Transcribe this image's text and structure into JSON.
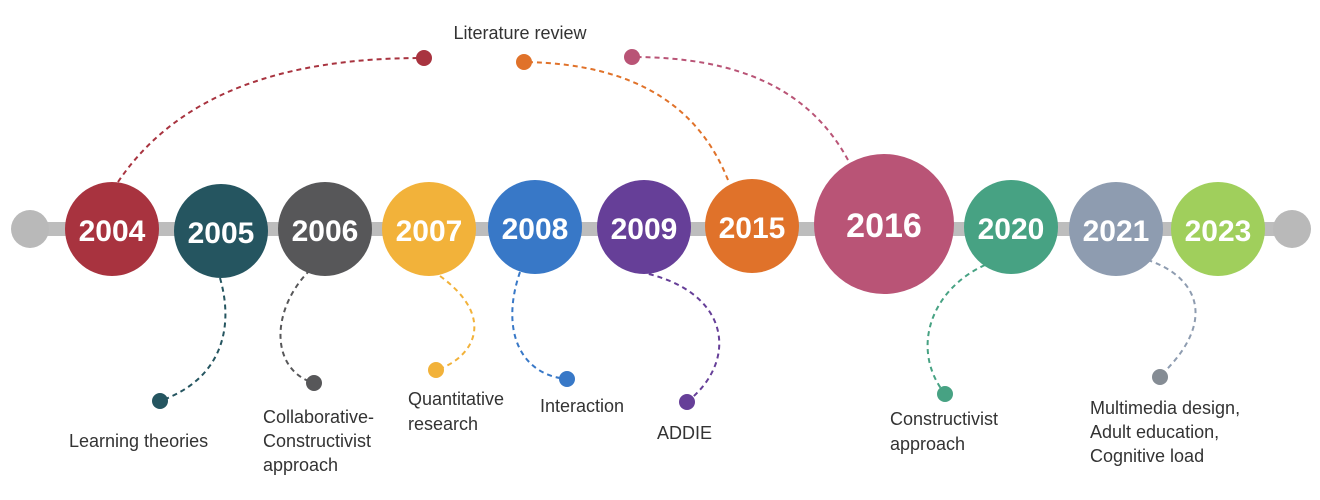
{
  "milestones": [
    {
      "year": "2004",
      "color": "#A8333F"
    },
    {
      "year": "2005",
      "color": "#255560"
    },
    {
      "year": "2006",
      "color": "#575759"
    },
    {
      "year": "2007",
      "color": "#F2B23A"
    },
    {
      "year": "2008",
      "color": "#3878C7"
    },
    {
      "year": "2009",
      "color": "#663F98"
    },
    {
      "year": "2015",
      "color": "#E0722A"
    },
    {
      "year": "2016",
      "color": "#B95476"
    },
    {
      "year": "2020",
      "color": "#47A283"
    },
    {
      "year": "2021",
      "color": "#8E9CB0"
    },
    {
      "year": "2023",
      "color": "#A0CF5C"
    }
  ],
  "topics": {
    "literature_review": "Literature review",
    "learning_theories": "Learning theories",
    "collaborative_constructivist": [
      "Collaborative-",
      "Constructivist",
      "approach"
    ],
    "quantitative_research": [
      "Quantitative",
      "research"
    ],
    "interaction": "Interaction",
    "addie": "ADDIE",
    "constructivist_approach": [
      "Constructivist",
      "approach"
    ],
    "multimedia": [
      "Multimedia design,",
      "Adult education,",
      "Cognitive load"
    ]
  }
}
